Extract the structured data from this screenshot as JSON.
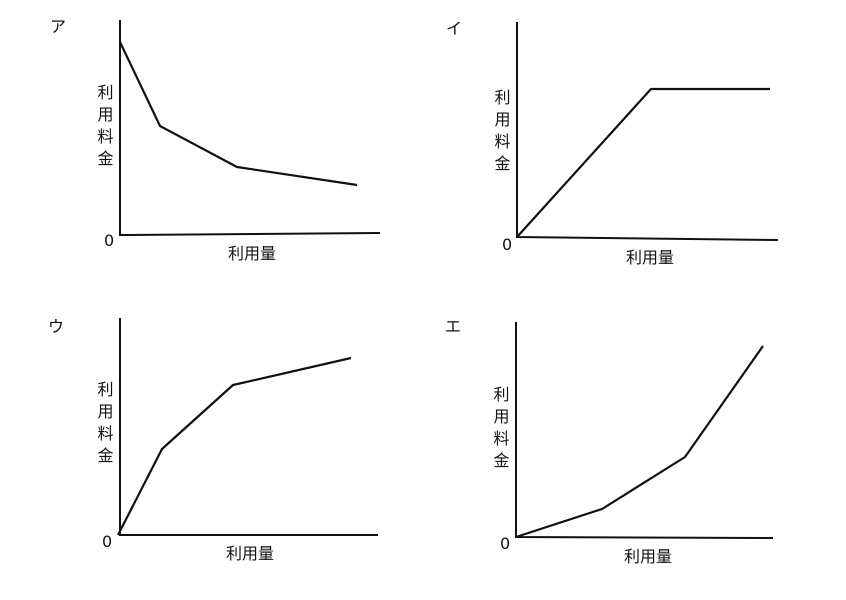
{
  "panels": [
    {
      "label": "ア",
      "y_label": "利用料金",
      "x_label": "利用量",
      "origin": "0"
    },
    {
      "label": "イ",
      "y_label": "利用料金",
      "x_label": "利用量",
      "origin": "0"
    },
    {
      "label": "ウ",
      "y_label": "利用料金",
      "x_label": "利用量",
      "origin": "0"
    },
    {
      "label": "エ",
      "y_label": "利用料金",
      "x_label": "利用量",
      "origin": "0"
    }
  ]
}
